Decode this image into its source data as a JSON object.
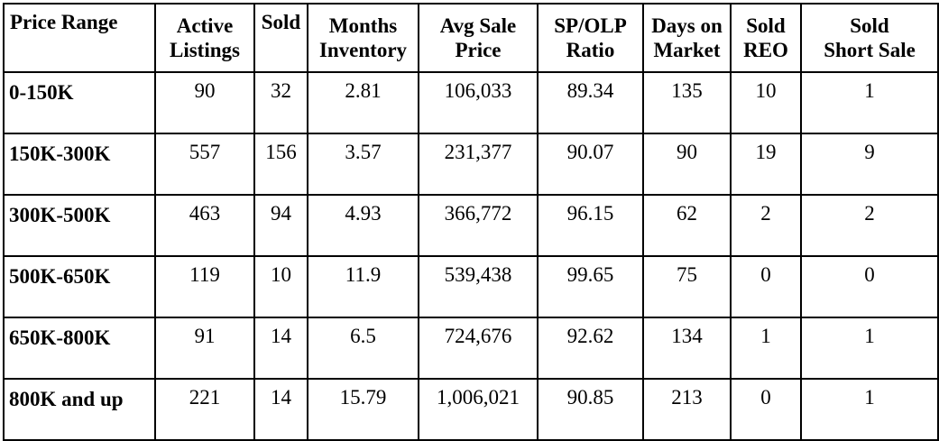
{
  "table": {
    "headers": [
      [
        "Price Range"
      ],
      [
        "Active",
        "Listings"
      ],
      [
        "Sold"
      ],
      [
        "Months",
        "Inventory"
      ],
      [
        "Avg Sale",
        "Price"
      ],
      [
        "SP/OLP",
        "Ratio"
      ],
      [
        "Days on",
        "Market"
      ],
      [
        "Sold",
        "REO"
      ],
      [
        "Sold",
        "Short Sale"
      ]
    ],
    "rows": [
      [
        "0-150K",
        "90",
        "32",
        "2.81",
        "106,033",
        "89.34",
        "135",
        "10",
        "1"
      ],
      [
        "150K-300K",
        "557",
        "156",
        "3.57",
        "231,377",
        "90.07",
        "90",
        "19",
        "9"
      ],
      [
        "300K-500K",
        "463",
        "94",
        "4.93",
        "366,772",
        "96.15",
        "62",
        "2",
        "2"
      ],
      [
        "500K-650K",
        "119",
        "10",
        "11.9",
        "539,438",
        "99.65",
        "75",
        "0",
        "0"
      ],
      [
        "650K-800K",
        "91",
        "14",
        "6.5",
        "724,676",
        "92.62",
        "134",
        "1",
        "1"
      ],
      [
        "800K and up",
        "221",
        "14",
        "15.79",
        "1,006,021",
        "90.85",
        "213",
        "0",
        "1"
      ]
    ]
  }
}
